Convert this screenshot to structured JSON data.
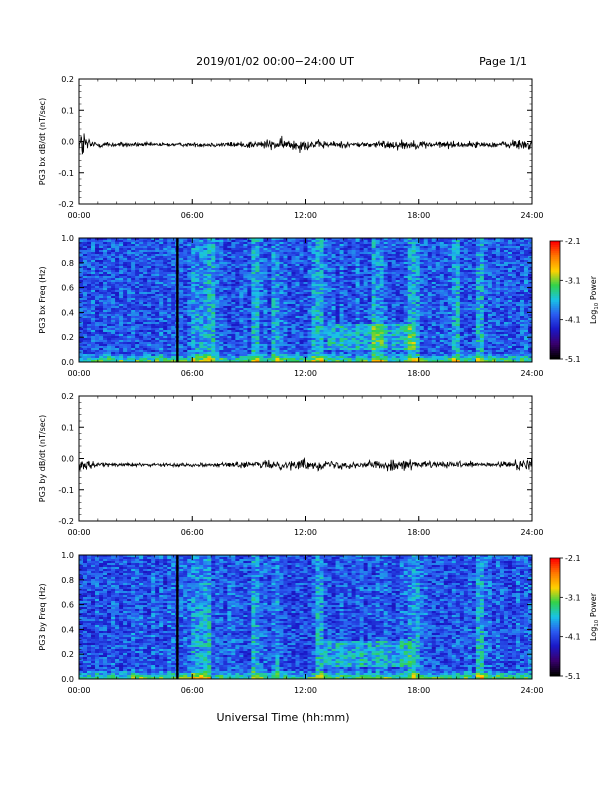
{
  "header": {
    "title": "2019/01/02  00:00−24:00 UT",
    "page": "Page 1/1"
  },
  "footer": {
    "xlabel": "Universal Time (hh:mm)"
  },
  "colors": {
    "trace": "#000000",
    "colormap": [
      "#000000",
      "#3a0070",
      "#1a18c8",
      "#2a5cf0",
      "#19c3e6",
      "#32d24a",
      "#ffd200",
      "#ff7a00",
      "#ff0000"
    ]
  },
  "chart_data": [
    {
      "type": "line",
      "name": "bx-trace",
      "ylabel": "PG3 bx dB/dt (nT/sec)",
      "xlim": [
        0,
        24
      ],
      "ylim": [
        -0.2,
        0.2
      ],
      "xticks": [
        "00:00",
        "06:00",
        "12:00",
        "18:00",
        "24:00"
      ],
      "yticks": [
        "0.2",
        "0.1",
        "0.0",
        "-0.1",
        "-0.2"
      ],
      "baseline": -0.01,
      "envelope": {
        "x": [
          0.0,
          0.25,
          0.5,
          1.0,
          2.0,
          4.0,
          5.0,
          8.0,
          10.0,
          11.0,
          12.0,
          12.5,
          13.0,
          14.0,
          15.0,
          16.0,
          17.0,
          18.0,
          20.0,
          22.0,
          23.8,
          24.0
        ],
        "amplitude": [
          0.035,
          0.05,
          0.02,
          0.01,
          0.008,
          0.006,
          0.005,
          0.008,
          0.015,
          0.018,
          0.02,
          0.012,
          0.012,
          0.01,
          0.008,
          0.012,
          0.015,
          0.012,
          0.01,
          0.008,
          0.02,
          0.025
        ]
      }
    },
    {
      "type": "heatmap",
      "name": "bx-spectrogram",
      "ylabel": "PG3 bx Freq (Hz)",
      "xlim": [
        0,
        24
      ],
      "ylim": [
        0.0,
        1.0
      ],
      "xticks": [
        "00:00",
        "06:00",
        "12:00",
        "18:00",
        "24:00"
      ],
      "yticks": [
        "1.0",
        "0.8",
        "0.6",
        "0.4",
        "0.2",
        "0.0"
      ],
      "gap_at_hours": 5.2,
      "colorbar": {
        "label": "Log10 Power",
        "label_main": "Log",
        "label_sub": "10",
        "label_rest": " Power",
        "range": [
          -5.1,
          -2.1
        ],
        "ticks": [
          "-2.1",
          "-3.1",
          "-4.1",
          "-5.1"
        ]
      },
      "activity": {
        "bright_bands_hours": [
          [
            6.0,
            7.2
          ],
          [
            9.1,
            9.5
          ],
          [
            10.2,
            10.6
          ],
          [
            12.3,
            13.0
          ],
          [
            15.5,
            16.0
          ],
          [
            17.4,
            18.1
          ],
          [
            19.7,
            20.1
          ],
          [
            21.0,
            21.3
          ]
        ],
        "pc1_event": {
          "hours": [
            13.2,
            17.8
          ],
          "freq_hz": [
            0.1,
            0.3
          ]
        }
      }
    },
    {
      "type": "line",
      "name": "by-trace",
      "ylabel": "PG3 by dB/dt (nT/sec)",
      "xlim": [
        0,
        24
      ],
      "ylim": [
        -0.2,
        0.2
      ],
      "xticks": [
        "00:00",
        "06:00",
        "12:00",
        "18:00",
        "24:00"
      ],
      "yticks": [
        "0.2",
        "0.1",
        "0.0",
        "-0.1",
        "-0.2"
      ],
      "baseline": -0.02,
      "envelope": {
        "x": [
          0.0,
          0.25,
          0.5,
          1.0,
          2.0,
          4.0,
          5.0,
          8.0,
          10.0,
          11.0,
          12.0,
          12.5,
          13.0,
          14.0,
          15.0,
          16.0,
          17.0,
          18.0,
          20.0,
          22.0,
          23.8,
          24.0
        ],
        "amplitude": [
          0.025,
          0.03,
          0.015,
          0.008,
          0.006,
          0.005,
          0.005,
          0.007,
          0.012,
          0.015,
          0.016,
          0.015,
          0.015,
          0.012,
          0.01,
          0.014,
          0.018,
          0.012,
          0.009,
          0.007,
          0.02,
          0.03
        ]
      }
    },
    {
      "type": "heatmap",
      "name": "by-spectrogram",
      "ylabel": "PG3 by Freq (Hz)",
      "xlim": [
        0,
        24
      ],
      "ylim": [
        0.0,
        1.0
      ],
      "xticks": [
        "00:00",
        "06:00",
        "12:00",
        "18:00",
        "24:00"
      ],
      "yticks": [
        "1.0",
        "0.8",
        "0.6",
        "0.4",
        "0.2",
        "0.0"
      ],
      "gap_at_hours": 5.2,
      "colorbar": {
        "label": "Log10 Power",
        "label_main": "Log",
        "label_sub": "10",
        "label_rest": " Power",
        "range": [
          -5.1,
          -2.1
        ],
        "ticks": [
          "-2.1",
          "-3.1",
          "-4.1",
          "-5.1"
        ]
      },
      "activity": {
        "bright_bands_hours": [
          [
            6.0,
            7.0
          ],
          [
            9.1,
            9.5
          ],
          [
            10.3,
            10.6
          ],
          [
            12.5,
            13.0
          ],
          [
            17.3,
            18.0
          ],
          [
            21.0,
            21.3
          ]
        ],
        "pc1_event": {
          "hours": [
            12.8,
            17.6
          ],
          "freq_hz": [
            0.1,
            0.3
          ]
        }
      }
    }
  ]
}
